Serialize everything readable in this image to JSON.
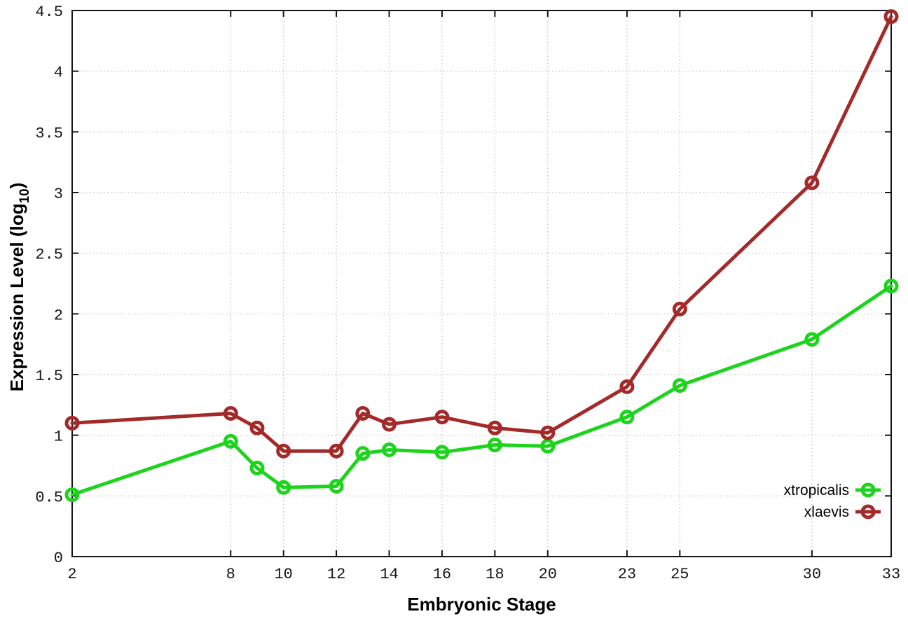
{
  "chart_data": {
    "type": "line",
    "title": "",
    "xlabel": "Embryonic Stage",
    "ylabel": "Expression Level (log10)",
    "ylabel_parts": {
      "prefix": "Expression Level (log",
      "subscript": "10",
      "suffix": ")"
    },
    "xlim": [
      2,
      33
    ],
    "ylim": [
      0,
      4.5
    ],
    "grid": true,
    "legend_position": "inside bottom-right",
    "x_ticks": [
      2,
      8,
      10,
      12,
      14,
      16,
      18,
      20,
      23,
      25,
      30,
      33
    ],
    "x_tick_labels": [
      "2",
      "8",
      "10",
      "12",
      "14",
      "16",
      "18",
      "20",
      "23",
      "25",
      "30",
      "33"
    ],
    "y_ticks": [
      0,
      0.5,
      1,
      1.5,
      2,
      2.5,
      3,
      3.5,
      4,
      4.5
    ],
    "y_tick_labels": [
      "0",
      "0.5",
      "1",
      "1.5",
      "2",
      "2.5",
      "3",
      "3.5",
      "4",
      "4.5"
    ],
    "x": [
      2,
      8,
      9,
      10,
      12,
      13,
      14,
      16,
      18,
      20,
      23,
      25,
      30,
      33
    ],
    "series": [
      {
        "name": "xtropicalis",
        "color": "#1cd41c",
        "values": [
          0.51,
          0.95,
          0.73,
          0.57,
          0.58,
          0.85,
          0.88,
          0.86,
          0.92,
          0.91,
          1.15,
          1.41,
          1.79,
          2.23
        ]
      },
      {
        "name": "xlaevis",
        "color": "#a42a2a",
        "values": [
          1.1,
          1.18,
          1.06,
          0.87,
          0.87,
          1.18,
          1.09,
          1.15,
          1.06,
          1.02,
          1.4,
          2.04,
          3.08,
          4.45
        ]
      }
    ],
    "marker": "open-circle",
    "colors": {
      "border": "#141414",
      "grid": "#bdbdbd",
      "background": "#ffffff"
    }
  }
}
